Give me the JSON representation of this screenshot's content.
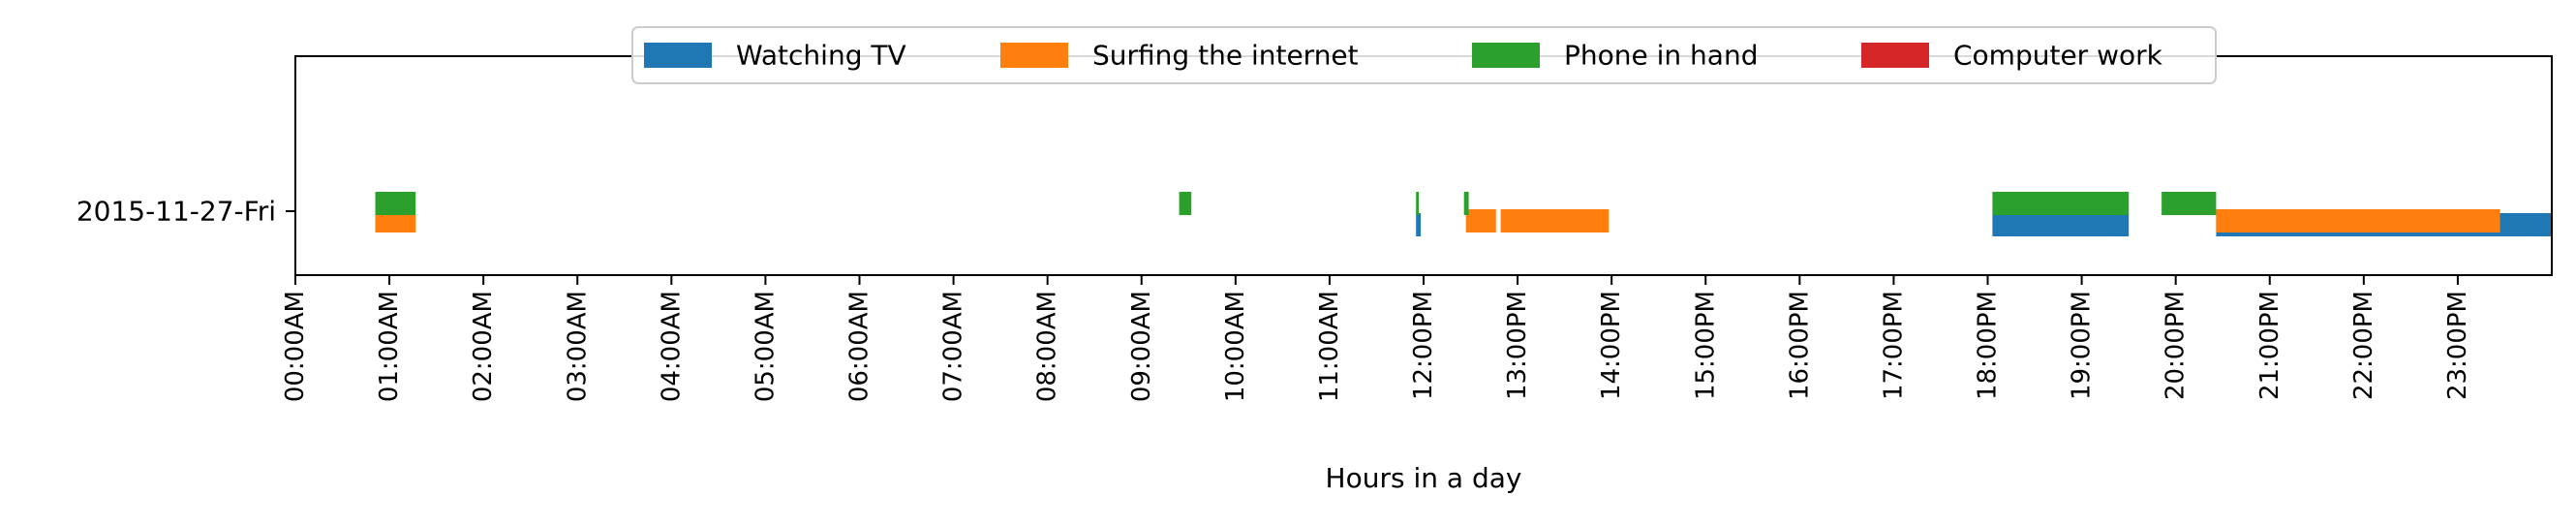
{
  "chart_data": {
    "type": "timeline",
    "title": "",
    "xlabel": "Hours in a day",
    "ylabel": "",
    "categories": [
      "2015-11-27-Fri"
    ],
    "x_range_hours": [
      0,
      24
    ],
    "x_ticks": [
      "00:00AM",
      "01:00AM",
      "02:00AM",
      "03:00AM",
      "04:00AM",
      "05:00AM",
      "06:00AM",
      "07:00AM",
      "08:00AM",
      "09:00AM",
      "10:00AM",
      "11:00AM",
      "12:00PM",
      "13:00PM",
      "14:00PM",
      "15:00PM",
      "16:00PM",
      "17:00PM",
      "18:00PM",
      "19:00PM",
      "20:00PM",
      "21:00PM",
      "22:00PM",
      "23:00PM"
    ],
    "legend_position": "top-center",
    "grid": false,
    "series": [
      {
        "name": "Watching TV",
        "color": "#1f77b4",
        "lane": 0,
        "intervals": [
          [
            11.92,
            11.97
          ],
          [
            18.05,
            19.5
          ],
          [
            20.43,
            24.0
          ]
        ]
      },
      {
        "name": "Surfing the internet",
        "color": "#ff7f0e",
        "lane": 1,
        "intervals": [
          [
            0.85,
            1.28
          ],
          [
            12.45,
            12.77
          ],
          [
            12.82,
            13.97
          ],
          [
            20.43,
            23.45
          ]
        ]
      },
      {
        "name": "Phone in hand",
        "color": "#2ca02c",
        "lane": 2,
        "intervals": [
          [
            0.85,
            1.28
          ],
          [
            9.4,
            9.53
          ],
          [
            11.92,
            11.95
          ],
          [
            12.43,
            12.48
          ],
          [
            18.05,
            19.5
          ],
          [
            19.85,
            20.43
          ]
        ]
      },
      {
        "name": "Computer work",
        "color": "#d62728",
        "lane": 3,
        "intervals": []
      }
    ]
  }
}
